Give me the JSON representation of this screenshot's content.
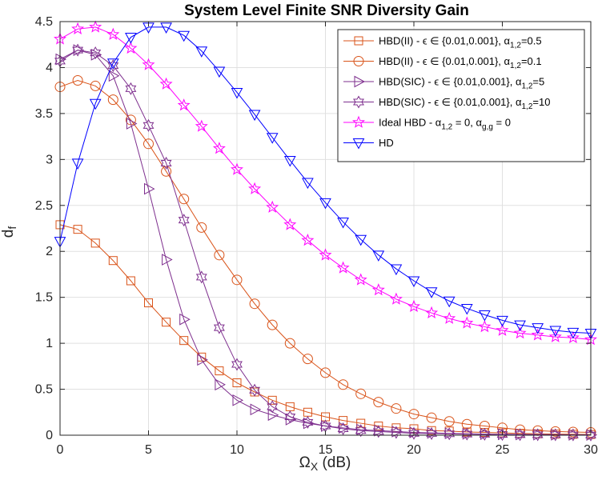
{
  "chart_data": {
    "type": "line",
    "title": "System Level Finite SNR Diversity Gain",
    "xlabel": "Ω",
    "xlabel_sub": "X",
    "xlabel_suffix": " (dB)",
    "ylabel": "d",
    "ylabel_sub": "f",
    "xlim": [
      0,
      30
    ],
    "ylim": [
      0,
      4.5
    ],
    "xticks": [
      0,
      5,
      10,
      15,
      20,
      25,
      30
    ],
    "yticks": [
      0,
      0.5,
      1,
      1.5,
      2,
      2.5,
      3,
      3.5,
      4,
      4.5
    ],
    "grid": true,
    "legend_position": "top-right",
    "x": [
      0,
      1,
      2,
      3,
      4,
      5,
      6,
      7,
      8,
      9,
      10,
      11,
      12,
      13,
      14,
      15,
      16,
      17,
      18,
      19,
      20,
      21,
      22,
      23,
      24,
      25,
      26,
      27,
      28,
      29,
      30
    ],
    "series": [
      {
        "name": "HBD(II) - ε ∈ {0.01,0.001}, α1,2=0.5",
        "legend_main": "HBD(II) - ϵ ∈ {0.01,0.001}, α",
        "legend_sub": "1,2",
        "legend_tail": "=0.5",
        "color": "#d95319",
        "marker": "square",
        "values": [
          2.29,
          2.24,
          2.09,
          1.9,
          1.68,
          1.44,
          1.23,
          1.03,
          0.85,
          0.7,
          0.57,
          0.47,
          0.38,
          0.31,
          0.25,
          0.2,
          0.16,
          0.13,
          0.1,
          0.08,
          0.07,
          0.05,
          0.045,
          0.035,
          0.03,
          0.025,
          0.02,
          0.015,
          0.012,
          0.01,
          0.008
        ]
      },
      {
        "name": "HBD(II) - ε ∈ {0.01,0.001}, α1,2=0.1",
        "legend_main": "HBD(II) - ϵ ∈ {0.01,0.001}, α",
        "legend_sub": "1,2",
        "legend_tail": "=0.1",
        "color": "#d95319",
        "marker": "circle",
        "values": [
          3.79,
          3.86,
          3.8,
          3.65,
          3.43,
          3.17,
          2.87,
          2.57,
          2.26,
          1.96,
          1.69,
          1.43,
          1.2,
          1.0,
          0.83,
          0.68,
          0.55,
          0.45,
          0.36,
          0.29,
          0.23,
          0.19,
          0.15,
          0.12,
          0.1,
          0.08,
          0.06,
          0.05,
          0.04,
          0.035,
          0.03
        ]
      },
      {
        "name": "HBD(SIC) - ε ∈ {0.01,0.001}, α1,2=5",
        "legend_main": "HBD(SIC) - ϵ ∈ {0.01,0.001}, α",
        "legend_sub": "1,2",
        "legend_tail": "=5",
        "color": "#7e2f8e",
        "marker": "triangle-right",
        "values": [
          4.09,
          4.19,
          4.14,
          3.91,
          3.39,
          2.68,
          1.91,
          1.26,
          0.82,
          0.55,
          0.38,
          0.28,
          0.22,
          0.17,
          0.13,
          0.1,
          0.08,
          0.06,
          0.05,
          0.04,
          0.03,
          0.025,
          0.02,
          0.015,
          0.012,
          0.01,
          0.008,
          0.006,
          0.005,
          0.004,
          0.003
        ]
      },
      {
        "name": "HBD(SIC) - ε ∈ {0.01,0.001}, α1,2=10",
        "legend_main": "HBD(SIC) - ϵ ∈ {0.01,0.001}, α",
        "legend_sub": "1,2",
        "legend_tail": "=10",
        "color": "#7e2f8e",
        "marker": "hexagram",
        "values": [
          4.07,
          4.19,
          4.16,
          4.02,
          3.77,
          3.37,
          2.96,
          2.34,
          1.72,
          1.17,
          0.77,
          0.49,
          0.31,
          0.2,
          0.14,
          0.1,
          0.07,
          0.05,
          0.04,
          0.03,
          0.02,
          0.018,
          0.015,
          0.012,
          0.01,
          0.008,
          0.006,
          0.005,
          0.004,
          0.003,
          0.002
        ]
      },
      {
        "name": "Ideal HBD - α1,2 = 0, αg,g = 0",
        "legend_main": "Ideal HBD - α",
        "legend_sub": "1,2",
        "legend_tail": " = 0, α",
        "legend_sub2": "g,g",
        "legend_tail2": " = 0",
        "color": "#ff00ff",
        "marker": "pentagram",
        "values": [
          4.31,
          4.42,
          4.44,
          4.36,
          4.21,
          4.03,
          3.82,
          3.59,
          3.36,
          3.12,
          2.89,
          2.68,
          2.48,
          2.29,
          2.12,
          1.96,
          1.82,
          1.69,
          1.58,
          1.48,
          1.4,
          1.33,
          1.27,
          1.22,
          1.18,
          1.14,
          1.11,
          1.09,
          1.07,
          1.06,
          1.04
        ]
      },
      {
        "name": "HD",
        "legend_main": "HD",
        "color": "#0000ff",
        "marker": "triangle-down",
        "values": [
          2.11,
          2.96,
          3.61,
          4.05,
          4.33,
          4.44,
          4.44,
          4.35,
          4.18,
          3.96,
          3.73,
          3.49,
          3.24,
          2.99,
          2.75,
          2.53,
          2.32,
          2.13,
          1.96,
          1.81,
          1.68,
          1.56,
          1.46,
          1.38,
          1.31,
          1.25,
          1.2,
          1.17,
          1.14,
          1.12,
          1.11
        ]
      }
    ]
  }
}
